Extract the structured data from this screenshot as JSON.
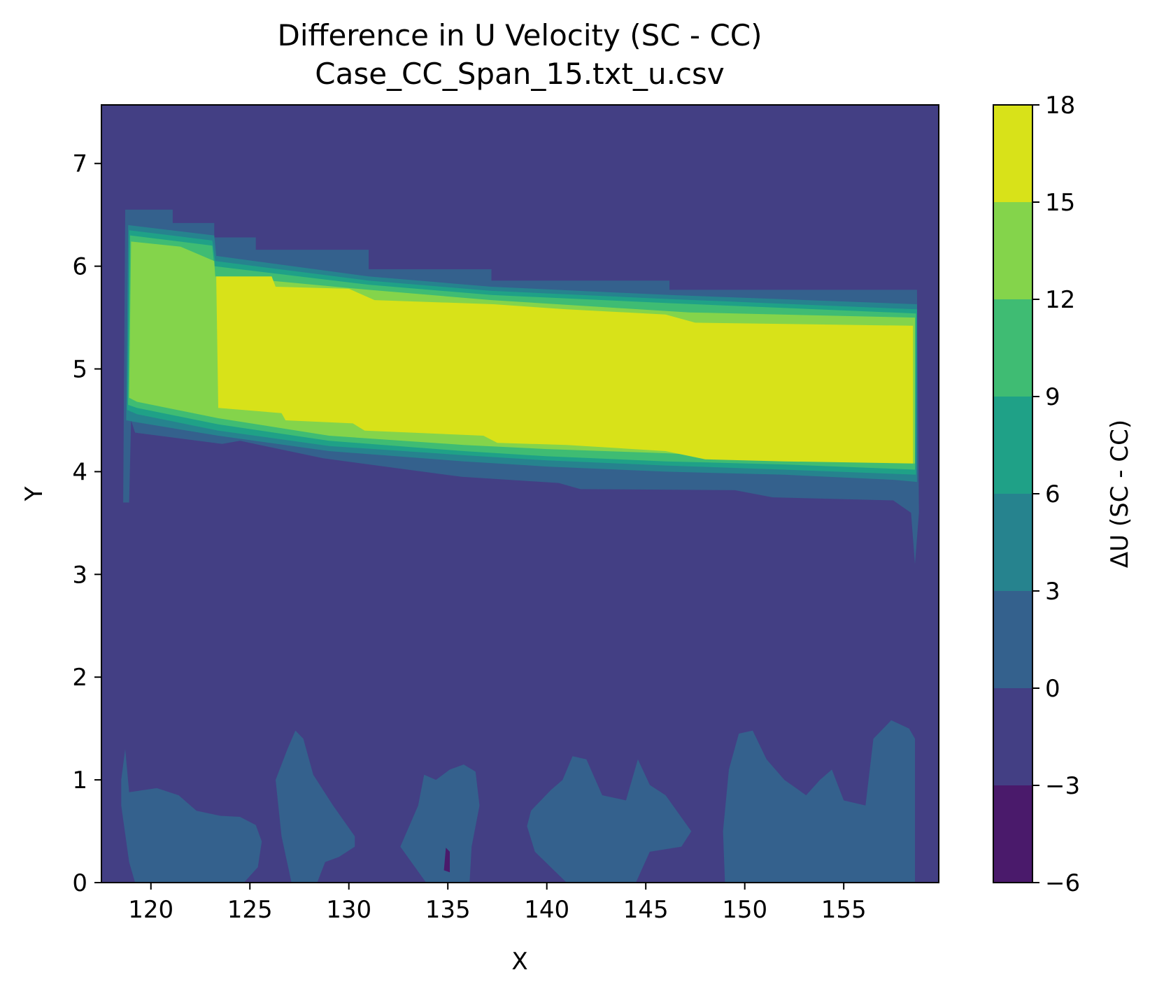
{
  "chart_data": {
    "type": "heatmap",
    "subtype": "filled-contour",
    "title": "Difference in U Velocity (SC - CC)",
    "subtitle": "Case_CC_Span_15.txt_u.csv",
    "xlabel": "X",
    "ylabel": "Y",
    "colorbar_label": "ΔU (SC - CC)",
    "xlim": [
      117.5,
      159.8
    ],
    "ylim": [
      0,
      7.57
    ],
    "x_ticks": [
      120,
      125,
      130,
      135,
      140,
      145,
      150,
      155
    ],
    "x_tick_labels": [
      "120",
      "125",
      "130",
      "135",
      "140",
      "145",
      "150",
      "155"
    ],
    "y_ticks": [
      0,
      1,
      2,
      3,
      4,
      5,
      6,
      7
    ],
    "y_tick_labels": [
      "0",
      "1",
      "2",
      "3",
      "4",
      "5",
      "6",
      "7"
    ],
    "levels": [
      -6,
      -3,
      0,
      3,
      6,
      9,
      12,
      15,
      18
    ],
    "level_labels": [
      "−6",
      "−3",
      "0",
      "3",
      "6",
      "9",
      "12",
      "15",
      "18"
    ],
    "level_colors": [
      "#4a1a6b",
      "#433f84",
      "#34618d",
      "#26838e",
      "#1fa187",
      "#3fbc73",
      "#84d44b",
      "#d8e219"
    ],
    "background_band": [
      -3,
      0
    ],
    "regions": [
      {
        "name": "jet-outer-0-3",
        "band": [
          0,
          3
        ],
        "polygon": [
          [
            118.6,
            3.7
          ],
          [
            118.7,
            6.55
          ],
          [
            121.1,
            6.55
          ],
          [
            121.1,
            6.42
          ],
          [
            123.2,
            6.42
          ],
          [
            123.2,
            6.28
          ],
          [
            125.3,
            6.28
          ],
          [
            125.3,
            6.16
          ],
          [
            131,
            6.16
          ],
          [
            131,
            5.97
          ],
          [
            137.2,
            5.97
          ],
          [
            137.2,
            5.86
          ],
          [
            146.2,
            5.86
          ],
          [
            146.2,
            5.77
          ],
          [
            158.7,
            5.77
          ],
          [
            158.8,
            3.6
          ],
          [
            158.6,
            3.1
          ],
          [
            158.4,
            3.6
          ],
          [
            157.5,
            3.72
          ],
          [
            151.4,
            3.75
          ],
          [
            149.5,
            3.82
          ],
          [
            141.7,
            3.83
          ],
          [
            140.6,
            3.89
          ],
          [
            135.7,
            3.95
          ],
          [
            128.7,
            4.13
          ],
          [
            124.5,
            4.3
          ],
          [
            123.6,
            4.27
          ],
          [
            119.2,
            4.38
          ],
          [
            119,
            4.5
          ],
          [
            118.9,
            3.7
          ]
        ]
      },
      {
        "name": "jet-3-6",
        "band": [
          3,
          6
        ],
        "polygon": [
          [
            118.75,
            4.5
          ],
          [
            118.85,
            6.4
          ],
          [
            123.2,
            6.3
          ],
          [
            123.3,
            6.1
          ],
          [
            131,
            5.9
          ],
          [
            137.2,
            5.8
          ],
          [
            146.2,
            5.72
          ],
          [
            158.7,
            5.63
          ],
          [
            158.7,
            3.9
          ],
          [
            157.6,
            3.92
          ],
          [
            152,
            3.97
          ],
          [
            146,
            4.0
          ],
          [
            140,
            4.05
          ],
          [
            135.8,
            4.1
          ],
          [
            129,
            4.2
          ],
          [
            123.4,
            4.35
          ],
          [
            119.3,
            4.48
          ]
        ]
      },
      {
        "name": "jet-6-9",
        "band": [
          6,
          9
        ],
        "polygon": [
          [
            118.8,
            4.6
          ],
          [
            118.9,
            6.35
          ],
          [
            123.1,
            6.25
          ],
          [
            123.25,
            6.05
          ],
          [
            131,
            5.86
          ],
          [
            137.2,
            5.76
          ],
          [
            146.2,
            5.68
          ],
          [
            158.7,
            5.58
          ],
          [
            158.65,
            3.97
          ],
          [
            152,
            4.02
          ],
          [
            146,
            4.06
          ],
          [
            140,
            4.11
          ],
          [
            135.8,
            4.16
          ],
          [
            129,
            4.25
          ],
          [
            123.4,
            4.4
          ],
          [
            119.3,
            4.56
          ]
        ]
      },
      {
        "name": "jet-9-12",
        "band": [
          9,
          12
        ],
        "polygon": [
          [
            118.85,
            4.65
          ],
          [
            118.95,
            6.3
          ],
          [
            123.1,
            6.2
          ],
          [
            123.2,
            6.0
          ],
          [
            131,
            5.82
          ],
          [
            137.2,
            5.72
          ],
          [
            146.2,
            5.64
          ],
          [
            158.65,
            5.54
          ],
          [
            158.6,
            4.02
          ],
          [
            152,
            4.07
          ],
          [
            146,
            4.1
          ],
          [
            140,
            4.15
          ],
          [
            135.8,
            4.2
          ],
          [
            129,
            4.3
          ],
          [
            123.4,
            4.46
          ],
          [
            119.3,
            4.62
          ]
        ]
      },
      {
        "name": "jet-12-15",
        "band": [
          12,
          15
        ],
        "polygon": [
          [
            118.9,
            4.72
          ],
          [
            119,
            6.24
          ],
          [
            121.5,
            6.19
          ],
          [
            123.2,
            6.05
          ],
          [
            123.25,
            5.9
          ],
          [
            126,
            5.86
          ],
          [
            131,
            5.77
          ],
          [
            137.2,
            5.67
          ],
          [
            143,
            5.6
          ],
          [
            147.2,
            5.55
          ],
          [
            158.6,
            5.5
          ],
          [
            158.6,
            4.08
          ],
          [
            152,
            4.12
          ],
          [
            146,
            4.18
          ],
          [
            140,
            4.22
          ],
          [
            135.8,
            4.26
          ],
          [
            129,
            4.35
          ],
          [
            123.4,
            4.52
          ],
          [
            119.3,
            4.68
          ]
        ]
      },
      {
        "name": "jet-core-15-18",
        "band": [
          15,
          18
        ],
        "polygon": [
          [
            123.4,
            4.62
          ],
          [
            123.3,
            5.9
          ],
          [
            126.1,
            5.9
          ],
          [
            126.3,
            5.8
          ],
          [
            130,
            5.78
          ],
          [
            131.3,
            5.67
          ],
          [
            137.3,
            5.63
          ],
          [
            141,
            5.58
          ],
          [
            146,
            5.53
          ],
          [
            147.5,
            5.45
          ],
          [
            158.5,
            5.42
          ],
          [
            158.5,
            4.08
          ],
          [
            152,
            4.1
          ],
          [
            148,
            4.12
          ],
          [
            146,
            4.2
          ],
          [
            141,
            4.26
          ],
          [
            137.5,
            4.28
          ],
          [
            136.8,
            4.35
          ],
          [
            130.8,
            4.4
          ],
          [
            130.2,
            4.47
          ],
          [
            126.8,
            4.5
          ],
          [
            126.6,
            4.57
          ]
        ]
      },
      {
        "name": "bottom-lobe-1",
        "band": [
          0,
          3
        ],
        "polygon": [
          [
            118.5,
            1.0
          ],
          [
            118.7,
            1.3
          ],
          [
            118.9,
            0.88
          ],
          [
            120.3,
            0.92
          ],
          [
            121.4,
            0.85
          ],
          [
            122.3,
            0.7
          ],
          [
            123.5,
            0.65
          ],
          [
            124.5,
            0.64
          ],
          [
            125.3,
            0.56
          ],
          [
            125.6,
            0.4
          ],
          [
            125.4,
            0.15
          ],
          [
            124.7,
            0.0
          ],
          [
            119.2,
            0.0
          ],
          [
            118.9,
            0.2
          ],
          [
            118.5,
            0.75
          ]
        ]
      },
      {
        "name": "bottom-lobe-2",
        "band": [
          0,
          3
        ],
        "polygon": [
          [
            126.3,
            1.0
          ],
          [
            126.9,
            1.3
          ],
          [
            127.3,
            1.48
          ],
          [
            127.7,
            1.4
          ],
          [
            128.2,
            1.05
          ],
          [
            129.2,
            0.75
          ],
          [
            130.3,
            0.45
          ],
          [
            130.3,
            0.35
          ],
          [
            129.5,
            0.25
          ],
          [
            128.8,
            0.2
          ],
          [
            128.4,
            0.0
          ],
          [
            127.1,
            0.0
          ],
          [
            126.6,
            0.45
          ]
        ]
      },
      {
        "name": "bottom-lobe-3",
        "band": [
          0,
          3
        ],
        "polygon": [
          [
            133.8,
            1.05
          ],
          [
            134.4,
            1.0
          ],
          [
            135.1,
            1.1
          ],
          [
            135.8,
            1.15
          ],
          [
            136.4,
            1.08
          ],
          [
            136.6,
            0.75
          ],
          [
            136.2,
            0.35
          ],
          [
            136.1,
            0.0
          ],
          [
            133.9,
            0.0
          ],
          [
            132.6,
            0.35
          ],
          [
            133.5,
            0.75
          ]
        ]
      },
      {
        "name": "bottom-lobe-4",
        "band": [
          0,
          3
        ],
        "polygon": [
          [
            139.2,
            0.7
          ],
          [
            140.2,
            0.9
          ],
          [
            140.8,
            1.0
          ],
          [
            141.3,
            1.23
          ],
          [
            142.0,
            1.2
          ],
          [
            142.8,
            0.85
          ],
          [
            144.0,
            0.8
          ],
          [
            144.6,
            1.2
          ],
          [
            145.2,
            0.95
          ],
          [
            146.0,
            0.85
          ],
          [
            147.3,
            0.5
          ],
          [
            146.8,
            0.35
          ],
          [
            145.2,
            0.3
          ],
          [
            144.5,
            0.0
          ],
          [
            141.0,
            0.0
          ],
          [
            139.4,
            0.3
          ],
          [
            139.0,
            0.55
          ]
        ]
      },
      {
        "name": "bottom-lobe-5",
        "band": [
          0,
          3
        ],
        "polygon": [
          [
            149.2,
            1.1
          ],
          [
            149.7,
            1.45
          ],
          [
            150.4,
            1.48
          ],
          [
            151.1,
            1.2
          ],
          [
            152.0,
            1.0
          ],
          [
            153.1,
            0.85
          ],
          [
            153.8,
            1.0
          ],
          [
            154.4,
            1.1
          ],
          [
            155.0,
            0.8
          ],
          [
            156.1,
            0.75
          ],
          [
            156.5,
            1.4
          ],
          [
            157.4,
            1.58
          ],
          [
            158.3,
            1.5
          ],
          [
            158.6,
            1.4
          ],
          [
            158.6,
            0.0
          ],
          [
            149.0,
            0.0
          ],
          [
            148.9,
            0.5
          ]
        ]
      },
      {
        "name": "bottom-min-spot",
        "band": [
          -6,
          -3
        ],
        "polygon": [
          [
            134.8,
            0.12
          ],
          [
            134.9,
            0.34
          ],
          [
            135.1,
            0.3
          ],
          [
            135.1,
            0.1
          ]
        ]
      }
    ]
  }
}
